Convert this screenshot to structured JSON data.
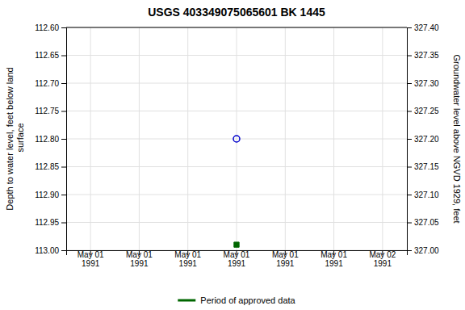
{
  "chart_data": {
    "type": "scatter",
    "title": "USGS 403349075065601 BK  1445",
    "y_label": "Depth to water level, feet below land\n surface",
    "y2_label": "Groundwater level above NGVD 1929, feet",
    "categories": [
      "May 01\n1991",
      "May 01\n1991",
      "May 01\n1991",
      "May 01\n1991",
      "May 01\n1991",
      "May 01\n1991",
      "May 02\n1991"
    ],
    "series": [
      {
        "color": "#0000cc",
        "marker": "circle",
        "values": [
          null,
          null,
          null,
          112.8,
          null,
          null,
          null
        ]
      },
      {
        "name": "Period of approved data",
        "color": "#006600",
        "marker": "square",
        "values": [
          null,
          null,
          null,
          112.99,
          null,
          null,
          null
        ]
      }
    ],
    "ylim": [
      113.0,
      112.6
    ],
    "yticks": [
      {
        "value": 112.6,
        "label": "112.60"
      },
      112.65,
      {
        "value": 112.7,
        "label": "112.70"
      },
      112.75,
      {
        "value": 112.8,
        "label": "112.80"
      },
      112.85,
      {
        "value": 112.9,
        "label": "112.90"
      },
      112.95,
      {
        "value": 113.0,
        "label": "113.00"
      }
    ],
    "y2lim": [
      327.0,
      327.4
    ],
    "y2ticks": [
      {
        "value": 327.4,
        "label": "327.40"
      },
      327.35,
      {
        "value": 327.3,
        "label": "327.30"
      },
      327.25,
      {
        "value": 327.2,
        "label": "327.20"
      },
      327.15,
      {
        "value": 327.1,
        "label": "327.10"
      },
      327.05,
      {
        "value": 327.0,
        "label": "327.00"
      }
    ],
    "grid": true,
    "legend": "bottom"
  }
}
